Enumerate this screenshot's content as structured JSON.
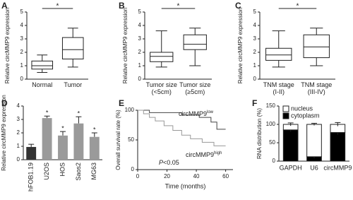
{
  "chart_data": [
    {
      "type": "box",
      "panel": "A",
      "y_label": "Relative circMMP9 expression",
      "categories": [
        [
          "Normal"
        ],
        [
          "Tumor"
        ]
      ],
      "boxes": [
        {
          "min": 0.5,
          "q1": 0.75,
          "median": 1.0,
          "q3": 1.35,
          "max": 1.8
        },
        {
          "min": 0.9,
          "q1": 1.5,
          "median": 2.2,
          "q3": 3.1,
          "max": 3.8
        }
      ],
      "significance": "*",
      "ylim": [
        0,
        5
      ],
      "yticks": [
        0,
        1,
        2,
        3,
        4,
        5
      ]
    },
    {
      "type": "box",
      "panel": "B",
      "y_label": "Relative circMMP9 expression",
      "categories": [
        [
          "Tumor size",
          "(<5cm)"
        ],
        [
          "Tumor size",
          "(≥5cm)"
        ]
      ],
      "boxes": [
        {
          "min": 0.9,
          "q1": 1.3,
          "median": 1.7,
          "q3": 2.0,
          "max": 3.6
        },
        {
          "min": 1.0,
          "q1": 2.2,
          "median": 2.6,
          "q3": 3.3,
          "max": 3.8
        }
      ],
      "significance": "*",
      "ylim": [
        0,
        5
      ],
      "yticks": [
        0,
        1,
        2,
        3,
        4,
        5
      ]
    },
    {
      "type": "box",
      "panel": "C",
      "y_label": "Relative circMMP9 expression",
      "categories": [
        [
          "TNM stage",
          "(I-II)"
        ],
        [
          "TNM stage",
          "(III-IV)"
        ]
      ],
      "boxes": [
        {
          "min": 0.9,
          "q1": 1.4,
          "median": 1.8,
          "q3": 2.3,
          "max": 3.6
        },
        {
          "min": 1.0,
          "q1": 1.6,
          "median": 2.4,
          "q3": 3.3,
          "max": 3.8
        }
      ],
      "significance": "*",
      "ylim": [
        0,
        5
      ],
      "yticks": [
        0,
        1,
        2,
        3,
        4,
        5
      ]
    },
    {
      "type": "bar",
      "panel": "D",
      "y_label": "Relative circMMP9 expression",
      "categories": [
        "hFOB1.19",
        "U2OS",
        "HOS",
        "Saos2",
        "MG63"
      ],
      "values": [
        0.95,
        3.1,
        1.8,
        2.7,
        1.7
      ],
      "errors": [
        0.2,
        0.15,
        0.3,
        0.5,
        0.3
      ],
      "colors": [
        "#333333",
        "#9a9a9a",
        "#9a9a9a",
        "#9a9a9a",
        "#9a9a9a"
      ],
      "significance": [
        null,
        "*",
        "*",
        "*",
        "*"
      ],
      "ylim": [
        0,
        4
      ],
      "yticks": [
        0,
        1,
        2,
        3,
        4
      ]
    },
    {
      "type": "line",
      "panel": "E",
      "y_label": "Overall survival rate (%)",
      "x_label": "Time (months)",
      "series": [
        {
          "name": "circMMP9",
          "name_sup": "low",
          "color": "#444444",
          "x": [
            0,
            8,
            8,
            30,
            30,
            42,
            42,
            50,
            50,
            54,
            54,
            60
          ],
          "values": [
            100,
            100,
            96,
            96,
            92,
            92,
            88,
            88,
            80,
            80,
            68,
            68
          ]
        },
        {
          "name": "circMMP9",
          "name_sup": "high",
          "color": "#999999",
          "x": [
            0,
            4,
            4,
            8,
            8,
            12,
            12,
            18,
            18,
            24,
            24,
            30,
            30,
            36,
            36,
            44,
            44,
            52,
            52,
            60
          ],
          "values": [
            100,
            100,
            94,
            94,
            88,
            88,
            82,
            82,
            74,
            74,
            66,
            66,
            58,
            58,
            52,
            52,
            46,
            46,
            40,
            40
          ]
        }
      ],
      "annotation": [
        "P",
        "<0.05"
      ],
      "xlim": [
        0,
        65
      ],
      "xticks": [
        0,
        20,
        40,
        60
      ],
      "ylim": [
        0,
        100
      ],
      "yticks": [
        0,
        50,
        100
      ]
    },
    {
      "type": "stacked_bar",
      "panel": "F",
      "y_label": "RNA distribution (%)",
      "categories": [
        "GAPDH",
        "U6",
        "circMMP9"
      ],
      "series": [
        {
          "name": "cytoplasm",
          "color": "#000000",
          "values": [
            85,
            12,
            78
          ],
          "errors": [
            5,
            4,
            6
          ]
        },
        {
          "name": "nucleus",
          "color": "#ffffff",
          "values": [
            15,
            88,
            22
          ],
          "errors": [
            4,
            3,
            5
          ]
        }
      ],
      "ylim": [
        0,
        150
      ],
      "yticks": [
        0,
        50,
        100,
        150
      ]
    }
  ]
}
